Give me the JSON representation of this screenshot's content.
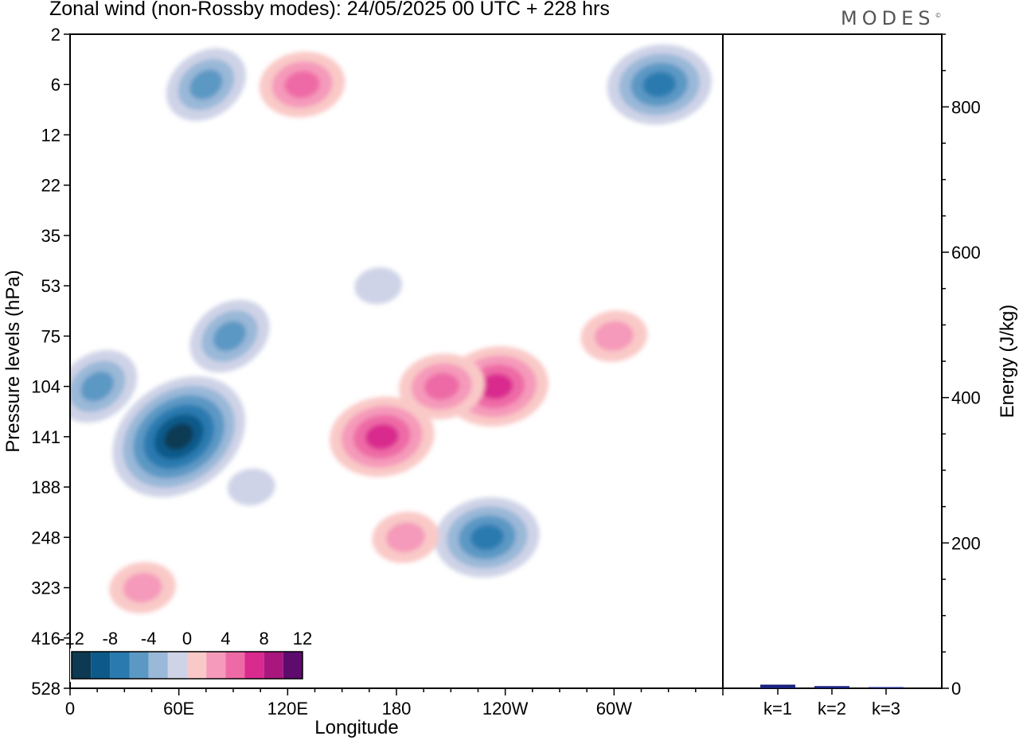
{
  "header": {
    "title": "Zonal wind (non-Rossby modes):  24/05/2025  00 UTC  + 228 hrs",
    "brand": "MODES",
    "brand_mark": "©"
  },
  "colors": {
    "negative": [
      "#0d3a52",
      "#0d5a8a",
      "#2a7ab0",
      "#5c98c4",
      "#9ab8d8",
      "#cfd3e7"
    ],
    "positive": [
      "#f9c9c7",
      "#f59aba",
      "#ee6aa6",
      "#d92a8e",
      "#a8167e",
      "#5e0b6e"
    ],
    "energy_bar": "#1a237e"
  },
  "chart_data": [
    {
      "type": "heatmap",
      "title": "Zonal wind (non-Rossby modes):  24/05/2025  00 UTC  + 228 hrs",
      "xlabel": "Longitude",
      "ylabel": "Pressure levels (hPa)",
      "x_ticks": [
        "0",
        "60E",
        "120E",
        "180",
        "120W",
        "60W"
      ],
      "y_ticks": [
        "2",
        "6",
        "12",
        "22",
        "35",
        "53",
        "75",
        "104",
        "141",
        "188",
        "248",
        "323",
        "416",
        "528"
      ],
      "colorbar": {
        "labels": [
          "-12",
          "-8",
          "-4",
          "0",
          "4",
          "8",
          "12"
        ],
        "levels": [
          -12,
          -10,
          -8,
          -6,
          -4,
          -2,
          0,
          2,
          4,
          6,
          8,
          10,
          12
        ]
      },
      "features": [
        {
          "lon": 60,
          "level": "141",
          "value": -12
        },
        {
          "lon": 15,
          "level": "104",
          "value": -6
        },
        {
          "lon": 88,
          "level": "75",
          "value": -6
        },
        {
          "lon": 230,
          "level": "248",
          "value": -7
        },
        {
          "lon": 325,
          "level": "6",
          "value": -7
        },
        {
          "lon": 75,
          "level": "6",
          "value": -6
        },
        {
          "lon": 235,
          "level": "104",
          "value": 8
        },
        {
          "lon": 205,
          "level": "104",
          "value": 6
        },
        {
          "lon": 172,
          "level": "141",
          "value": 7
        },
        {
          "lon": 128,
          "level": "6",
          "value": 6
        },
        {
          "lon": 300,
          "level": "75",
          "value": 4
        },
        {
          "lon": 185,
          "level": "248",
          "value": 3
        },
        {
          "lon": 40,
          "level": "323",
          "value": 3
        },
        {
          "lon": 100,
          "level": "188",
          "value": -2
        },
        {
          "lon": 170,
          "level": "53",
          "value": -2
        }
      ]
    },
    {
      "type": "bar",
      "categories": [
        "k=1",
        "k=2",
        "k=3"
      ],
      "values": [
        5,
        3,
        1
      ],
      "ylabel": "Energy (J/kg)",
      "ylim": [
        0,
        900
      ],
      "y_ticks": [
        "0",
        "200",
        "400",
        "600",
        "800"
      ]
    }
  ]
}
